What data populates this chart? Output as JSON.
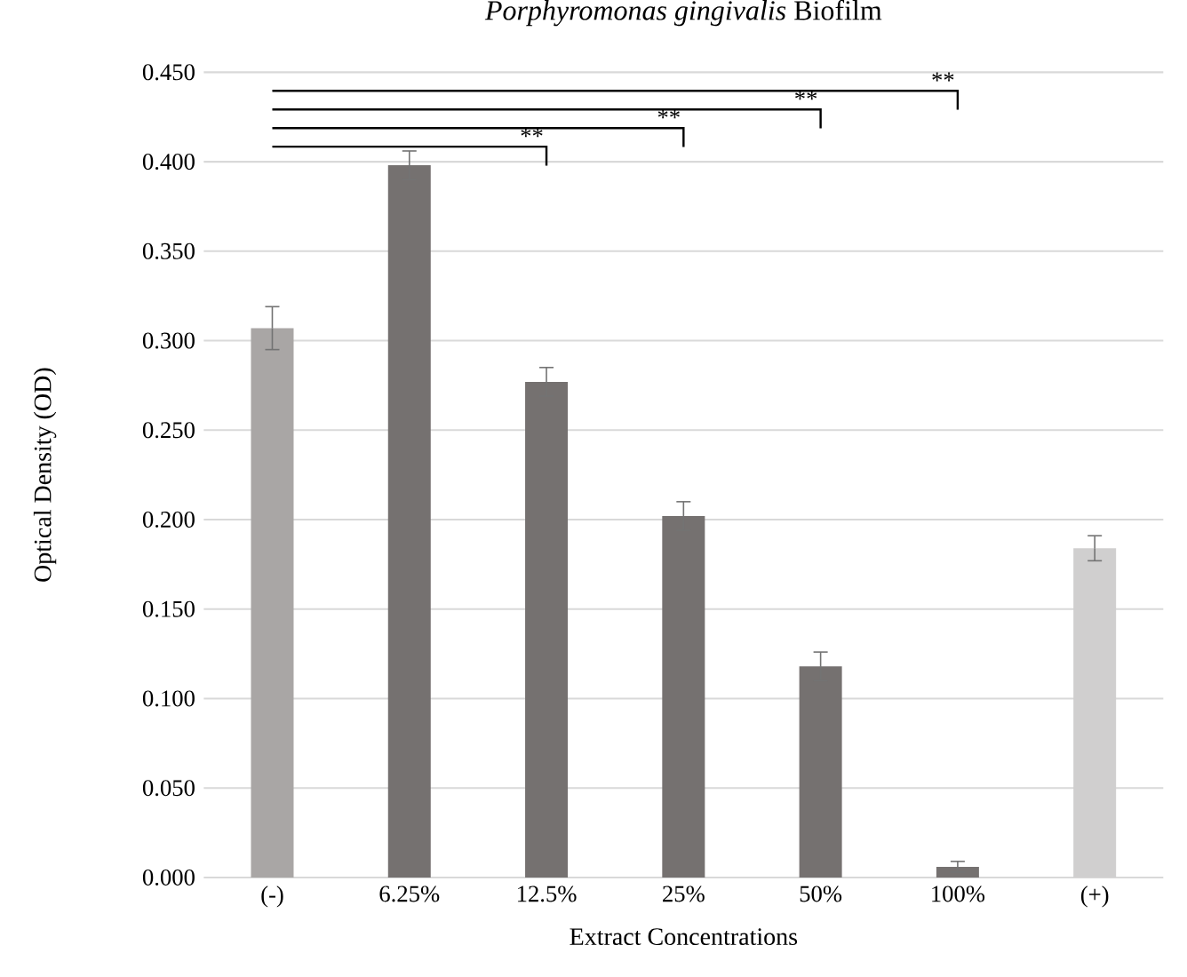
{
  "chart_data": {
    "type": "bar",
    "title": "*Porphyromonas gingivalis* Biofilm",
    "xlabel": "Extract Concentrations",
    "ylabel": "Optical Density (OD)",
    "categories": [
      "(-)",
      "6.25%",
      "12.5%",
      "25%",
      "50%",
      "100%",
      "(+)"
    ],
    "values": [
      0.307,
      0.398,
      0.277,
      0.202,
      0.118,
      0.006,
      0.184
    ],
    "errors": [
      0.012,
      0.008,
      0.008,
      0.008,
      0.008,
      0.003,
      0.007
    ],
    "colors": [
      "#a9a6a5",
      "#757170",
      "#757170",
      "#757170",
      "#757170",
      "#757170",
      "#d0cfcf"
    ],
    "ylim": [
      0,
      0.45
    ],
    "yticks": [
      {
        "value": 0,
        "label": "0.000"
      },
      {
        "value": 0.05,
        "label": "0.050"
      },
      {
        "value": 0.1,
        "label": "0.100"
      },
      {
        "value": 0.15,
        "label": "0.150"
      },
      {
        "value": 0.2,
        "label": "0.200"
      },
      {
        "value": 0.25,
        "label": "0.250"
      },
      {
        "value": 0.3,
        "label": "0.300"
      },
      {
        "value": 0.35,
        "label": "0.350"
      },
      {
        "value": 0.4,
        "label": "0.400"
      },
      {
        "value": 0.45,
        "label": "0.450"
      }
    ],
    "grid": "y",
    "annotations": [
      "**",
      "**",
      "**",
      "**"
    ]
  }
}
